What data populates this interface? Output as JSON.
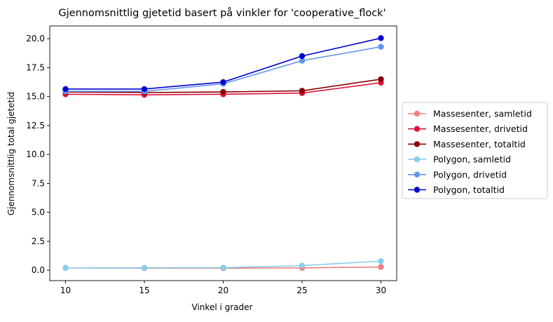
{
  "chart_data": {
    "type": "line",
    "title": "Gjennomsnittlig gjetetid basert på vinkler for 'cooperative_flock'",
    "xlabel": "Vinkel i grader",
    "ylabel": "Gjennomsnittlig total gjetetid",
    "x": [
      10,
      15,
      20,
      25,
      30
    ],
    "xticks": [
      "10",
      "15",
      "20",
      "25",
      "30"
    ],
    "yticks": [
      "0.0",
      "2.5",
      "5.0",
      "7.5",
      "10.0",
      "12.5",
      "15.0",
      "17.5",
      "20.0"
    ],
    "xlim": [
      9,
      31
    ],
    "ylim": [
      -0.9,
      21.1
    ],
    "grid": false,
    "legend_position": "right, outside plot",
    "series": [
      {
        "name": "Massesenter, samletid",
        "color": "#f08080",
        "values": [
          0.2,
          0.17,
          0.17,
          0.2,
          0.28
        ]
      },
      {
        "name": "Massesenter, drivetid",
        "color": "#dc143c",
        "values": [
          15.2,
          15.15,
          15.2,
          15.3,
          16.2
        ]
      },
      {
        "name": "Massesenter, totaltid",
        "color": "#8b0000",
        "values": [
          15.4,
          15.35,
          15.4,
          15.5,
          16.5
        ]
      },
      {
        "name": "Polygon, samletid",
        "color": "#87ceeb",
        "values": [
          0.2,
          0.2,
          0.22,
          0.4,
          0.78
        ]
      },
      {
        "name": "Polygon, drivetid",
        "color": "#6495ed",
        "values": [
          15.45,
          15.45,
          16.1,
          18.1,
          19.3
        ]
      },
      {
        "name": "Polygon, totaltid",
        "color": "#0000cd",
        "values": [
          15.65,
          15.65,
          16.25,
          18.5,
          20.05
        ]
      }
    ]
  }
}
